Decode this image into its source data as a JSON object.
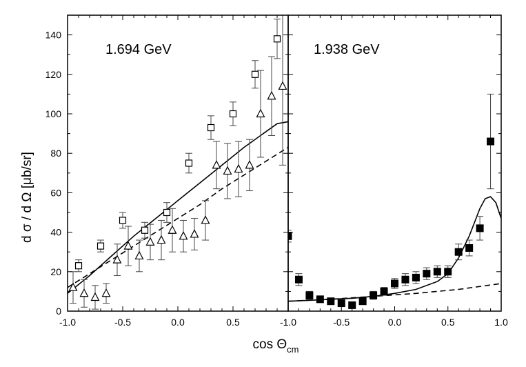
{
  "chart_data": {
    "type": "scatter",
    "ylabel": "d σ / d Ω [μb/sr]",
    "xlabel_main": "cos Θ",
    "xlabel_sub": "cm",
    "ylim": [
      0,
      150
    ],
    "yticks": [
      0,
      20,
      40,
      60,
      80,
      100,
      120,
      140
    ],
    "panels": [
      {
        "id": "left",
        "title": "1.694 GeV",
        "xlim": [
          -1.0,
          1.0
        ],
        "xticks": [
          -1.0,
          -0.5,
          0.0,
          0.5
        ],
        "xtick_labels": [
          "-1.0",
          "-0.5",
          "0.0",
          "0.5"
        ],
        "series": [
          {
            "name": "open squares",
            "marker": "open-square",
            "points": [
              {
                "x": -0.9,
                "y": 23,
                "err": 3
              },
              {
                "x": -0.7,
                "y": 33,
                "err": 3
              },
              {
                "x": -0.5,
                "y": 46,
                "err": 4
              },
              {
                "x": -0.3,
                "y": 41,
                "err": 4
              },
              {
                "x": -0.1,
                "y": 50,
                "err": 5
              },
              {
                "x": 0.1,
                "y": 75,
                "err": 5
              },
              {
                "x": 0.3,
                "y": 93,
                "err": 6
              },
              {
                "x": 0.5,
                "y": 100,
                "err": 6
              },
              {
                "x": 0.7,
                "y": 120,
                "err": 7
              },
              {
                "x": 0.9,
                "y": 138,
                "err": 10
              }
            ]
          },
          {
            "name": "open triangles",
            "marker": "open-triangle",
            "points": [
              {
                "x": -0.95,
                "y": 12,
                "err": 8
              },
              {
                "x": -0.85,
                "y": 9,
                "err": 7
              },
              {
                "x": -0.75,
                "y": 7,
                "err": 6
              },
              {
                "x": -0.65,
                "y": 9,
                "err": 5
              },
              {
                "x": -0.55,
                "y": 26,
                "err": 8
              },
              {
                "x": -0.45,
                "y": 33,
                "err": 10
              },
              {
                "x": -0.35,
                "y": 28,
                "err": 8
              },
              {
                "x": -0.25,
                "y": 35,
                "err": 9
              },
              {
                "x": -0.15,
                "y": 36,
                "err": 10
              },
              {
                "x": -0.05,
                "y": 41,
                "err": 11
              },
              {
                "x": 0.05,
                "y": 38,
                "err": 8
              },
              {
                "x": 0.15,
                "y": 39,
                "err": 8
              },
              {
                "x": 0.25,
                "y": 46,
                "err": 10
              },
              {
                "x": 0.35,
                "y": 74,
                "err": 12
              },
              {
                "x": 0.45,
                "y": 71,
                "err": 14
              },
              {
                "x": 0.55,
                "y": 72,
                "err": 14
              },
              {
                "x": 0.65,
                "y": 74,
                "err": 13
              },
              {
                "x": 0.75,
                "y": 100,
                "err": 22
              },
              {
                "x": 0.85,
                "y": 109,
                "err": 20
              },
              {
                "x": 0.95,
                "y": 114,
                "err": 40
              }
            ]
          }
        ],
        "curves": [
          {
            "name": "solid",
            "style": "solid",
            "points": [
              [
                -1.0,
                9
              ],
              [
                -0.8,
                18
              ],
              [
                -0.6,
                28
              ],
              [
                -0.4,
                38
              ],
              [
                -0.2,
                47
              ],
              [
                0.0,
                56
              ],
              [
                0.2,
                65
              ],
              [
                0.4,
                74
              ],
              [
                0.6,
                83
              ],
              [
                0.8,
                91
              ],
              [
                0.9,
                95
              ],
              [
                1.0,
                96
              ]
            ]
          },
          {
            "name": "dashed",
            "style": "dashed",
            "points": [
              [
                -1.0,
                12
              ],
              [
                -0.8,
                19
              ],
              [
                -0.6,
                26
              ],
              [
                -0.4,
                33
              ],
              [
                -0.2,
                40
              ],
              [
                0.0,
                47
              ],
              [
                0.2,
                54
              ],
              [
                0.4,
                62
              ],
              [
                0.6,
                69
              ],
              [
                0.8,
                76
              ],
              [
                1.0,
                83
              ]
            ]
          }
        ]
      },
      {
        "id": "right",
        "title": "1.938 GeV",
        "xlim": [
          -1.0,
          1.0
        ],
        "xticks": [
          -1.0,
          -0.5,
          0.0,
          0.5,
          1.0
        ],
        "xtick_labels": [
          "-1.0",
          "-0.5",
          "0.0",
          "0.5",
          "1.0"
        ],
        "series": [
          {
            "name": "filled squares",
            "marker": "filled-square",
            "points": [
              {
                "x": -1.0,
                "y": 38,
                "err": 3
              },
              {
                "x": -0.9,
                "y": 16,
                "err": 3
              },
              {
                "x": -0.8,
                "y": 8,
                "err": 2
              },
              {
                "x": -0.7,
                "y": 6,
                "err": 1.5
              },
              {
                "x": -0.6,
                "y": 5,
                "err": 1.5
              },
              {
                "x": -0.5,
                "y": 4,
                "err": 1.5
              },
              {
                "x": -0.4,
                "y": 3,
                "err": 1.5
              },
              {
                "x": -0.3,
                "y": 5,
                "err": 1.5
              },
              {
                "x": -0.2,
                "y": 8,
                "err": 2
              },
              {
                "x": -0.1,
                "y": 10,
                "err": 2
              },
              {
                "x": 0.0,
                "y": 14,
                "err": 2.5
              },
              {
                "x": 0.1,
                "y": 16,
                "err": 3
              },
              {
                "x": 0.2,
                "y": 17,
                "err": 3
              },
              {
                "x": 0.3,
                "y": 19,
                "err": 3
              },
              {
                "x": 0.4,
                "y": 20,
                "err": 3
              },
              {
                "x": 0.5,
                "y": 20,
                "err": 3
              },
              {
                "x": 0.6,
                "y": 30,
                "err": 4
              },
              {
                "x": 0.7,
                "y": 32,
                "err": 4
              },
              {
                "x": 0.8,
                "y": 42,
                "err": 6
              },
              {
                "x": 0.9,
                "y": 86,
                "err": 24
              }
            ]
          }
        ],
        "curves": [
          {
            "name": "solid",
            "style": "solid",
            "points": [
              [
                -1.0,
                5
              ],
              [
                -0.8,
                5.5
              ],
              [
                -0.6,
                6
              ],
              [
                -0.4,
                6.5
              ],
              [
                -0.2,
                7.5
              ],
              [
                0.0,
                9
              ],
              [
                0.2,
                11
              ],
              [
                0.4,
                15
              ],
              [
                0.5,
                19
              ],
              [
                0.6,
                27
              ],
              [
                0.7,
                38
              ],
              [
                0.8,
                52
              ],
              [
                0.85,
                57
              ],
              [
                0.9,
                58
              ],
              [
                0.95,
                55
              ],
              [
                1.0,
                47
              ]
            ]
          },
          {
            "name": "dashed",
            "style": "dashed",
            "points": [
              [
                -1.0,
                5
              ],
              [
                -0.6,
                6
              ],
              [
                -0.2,
                7.5
              ],
              [
                0.2,
                9
              ],
              [
                0.6,
                11
              ],
              [
                1.0,
                14
              ]
            ]
          }
        ]
      }
    ]
  }
}
